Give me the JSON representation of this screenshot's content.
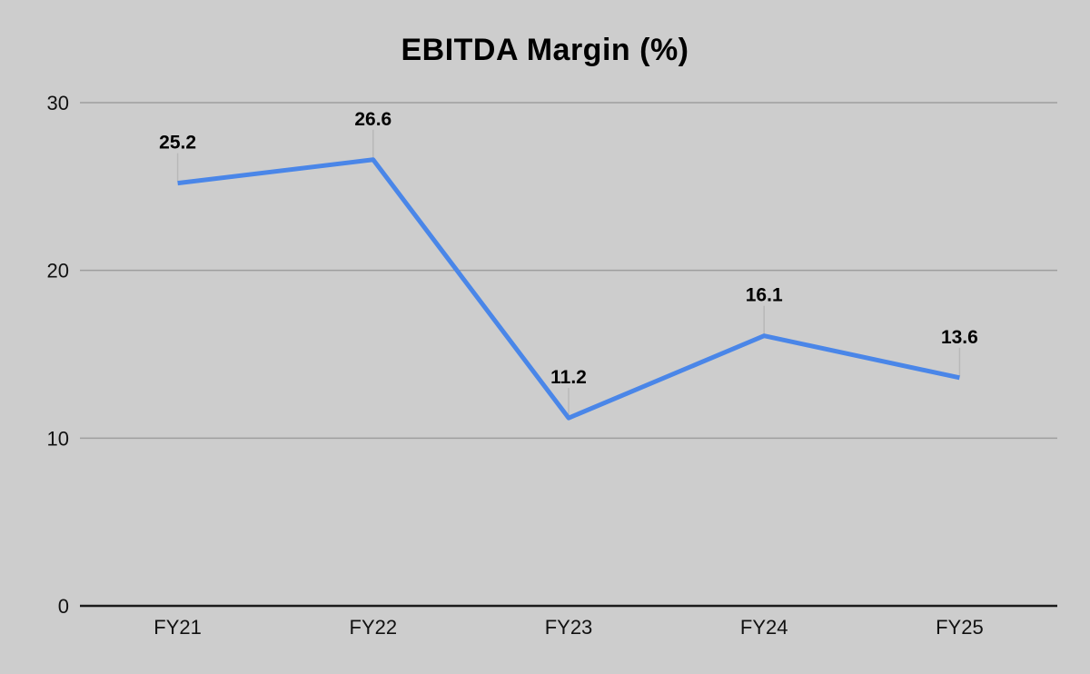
{
  "chart_data": {
    "type": "line",
    "title": "EBITDA Margin (%)",
    "categories": [
      "FY21",
      "FY22",
      "FY23",
      "FY24",
      "FY25"
    ],
    "series": [
      {
        "name": "EBITDA Margin",
        "values": [
          25.2,
          26.6,
          11.2,
          16.1,
          13.6
        ]
      }
    ],
    "data_labels": [
      "25.2",
      "26.6",
      "11.2",
      "16.1",
      "13.6"
    ],
    "xlabel": "",
    "ylabel": "",
    "ylim": [
      0,
      30
    ],
    "yticks": [
      0,
      10,
      20,
      30
    ],
    "grid": true,
    "legend_position": "none",
    "colors": {
      "line": "#4a86e8",
      "background": "#cdcdcd",
      "gridline": "#9e9e9e",
      "axis_line": "#1a1a1a",
      "leader_line": "#b8b8b8",
      "text": "#111111"
    }
  }
}
